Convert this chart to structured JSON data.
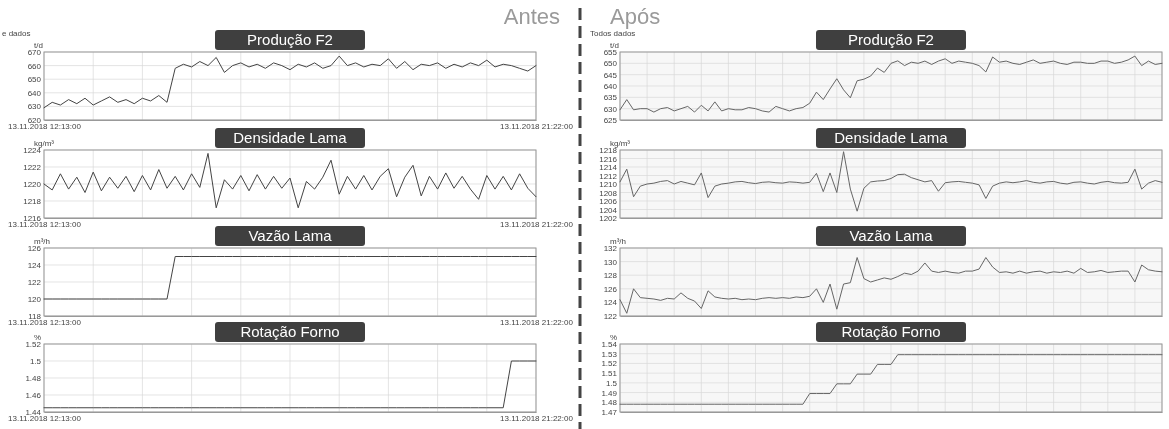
{
  "chart_data": [
    {
      "type": "line",
      "title": "Produção F2",
      "ylabel": "t/d",
      "annotations": [
        "Antes",
        "e dados"
      ],
      "grid": true,
      "ylim": [
        620,
        670
      ],
      "yticks": [
        620,
        630,
        640,
        650,
        660,
        670
      ],
      "categories": [
        "13.11.2018 12:13:00",
        null,
        null,
        null,
        null,
        null,
        null,
        null,
        null,
        null,
        null,
        null,
        null,
        null,
        null,
        null,
        null,
        null,
        null,
        null,
        null,
        null,
        null,
        null,
        null,
        null,
        null,
        null,
        null,
        null,
        null,
        null,
        null,
        null,
        null,
        null,
        null,
        null,
        null,
        null,
        null,
        null,
        null,
        null,
        null,
        null,
        null,
        null,
        null,
        null,
        null,
        null,
        null,
        null,
        null,
        null,
        null,
        null,
        null,
        null,
        "13.11.2018 21:22:00"
      ],
      "series": [
        {
          "color": "#444444",
          "values": [
            629,
            633,
            631,
            635,
            632,
            636,
            631,
            634,
            637,
            633,
            635,
            632,
            636,
            634,
            638,
            633,
            658,
            661,
            659,
            663,
            660,
            666,
            655,
            660,
            662,
            659,
            661,
            658,
            662,
            660,
            657,
            661,
            659,
            662,
            658,
            660,
            667,
            660,
            662,
            659,
            661,
            660,
            665,
            658,
            663,
            657,
            661,
            660,
            662,
            658,
            661,
            659,
            662,
            660,
            664,
            659,
            661,
            660,
            658,
            656,
            660
          ]
        }
      ]
    },
    {
      "type": "line",
      "title": "Densidade Lama",
      "ylabel": "kg/m³",
      "grid": true,
      "ylim": [
        1216,
        1224
      ],
      "yticks": [
        1216,
        1218,
        1220,
        1222,
        1224
      ],
      "categories": [
        "13.11.2018 12:13:00",
        null,
        null,
        null,
        null,
        null,
        null,
        null,
        null,
        null,
        null,
        null,
        null,
        null,
        null,
        null,
        null,
        null,
        null,
        null,
        null,
        null,
        null,
        null,
        null,
        null,
        null,
        null,
        null,
        null,
        null,
        null,
        null,
        null,
        null,
        null,
        null,
        null,
        null,
        null,
        null,
        null,
        null,
        null,
        null,
        null,
        null,
        null,
        null,
        null,
        null,
        null,
        null,
        null,
        null,
        null,
        null,
        null,
        null,
        null,
        "13.11.2018 21:22:00"
      ],
      "series": [
        {
          "color": "#444444",
          "values": [
            1220,
            1219.3,
            1221.2,
            1219.4,
            1220.8,
            1219,
            1221.4,
            1219.2,
            1220.8,
            1219.5,
            1220.9,
            1219.1,
            1221,
            1219.3,
            1221.7,
            1219.5,
            1220.9,
            1219.3,
            1221.2,
            1219.6,
            1223.6,
            1217.2,
            1220.5,
            1219.4,
            1221,
            1219.2,
            1221.1,
            1219.4,
            1220.9,
            1219.5,
            1220.7,
            1217.2,
            1220.3,
            1219.4,
            1220.8,
            1222.8,
            1218.8,
            1220.9,
            1219.4,
            1221,
            1219.3,
            1220.9,
            1221.8,
            1218.5,
            1220.8,
            1222.2,
            1218.6,
            1220.9,
            1219.4,
            1221.3,
            1219.5,
            1220.9,
            1219.4,
            1218.2,
            1221,
            1219.4,
            1220.9,
            1219.3,
            1221.2,
            1219.5,
            1218.5
          ]
        }
      ]
    },
    {
      "type": "line",
      "title": "Vazão Lama",
      "ylabel": "m³/h",
      "grid": true,
      "ylim": [
        118,
        126
      ],
      "yticks": [
        118,
        120,
        122,
        124,
        126
      ],
      "categories": [
        "13.11.2018 12:13:00",
        null,
        null,
        null,
        null,
        null,
        null,
        null,
        null,
        null,
        null,
        null,
        null,
        null,
        null,
        null,
        null,
        null,
        null,
        null,
        null,
        null,
        null,
        null,
        null,
        null,
        null,
        null,
        null,
        null,
        null,
        null,
        null,
        null,
        null,
        null,
        null,
        null,
        null,
        null,
        null,
        null,
        null,
        null,
        null,
        null,
        null,
        null,
        null,
        null,
        null,
        null,
        null,
        null,
        null,
        null,
        null,
        null,
        null,
        null,
        "13.11.2018 21:22:00"
      ],
      "series": [
        {
          "color": "#444444",
          "values": [
            120,
            120,
            120,
            120,
            120,
            120,
            120,
            120,
            120,
            120,
            120,
            120,
            120,
            120,
            120,
            120,
            125,
            125,
            125,
            125,
            125,
            125,
            125,
            125,
            125,
            125,
            125,
            125,
            125,
            125,
            125,
            125,
            125,
            125,
            125,
            125,
            125,
            125,
            125,
            125,
            125,
            125,
            125,
            125,
            125,
            125,
            125,
            125,
            125,
            125,
            125,
            125,
            125,
            125,
            125,
            125,
            125,
            125,
            125,
            125,
            125
          ]
        }
      ]
    },
    {
      "type": "line",
      "title": "Rotação Forno",
      "ylabel": "%",
      "grid": true,
      "ylim": [
        1.44,
        1.52
      ],
      "yticks": [
        1.44,
        1.46,
        1.48,
        1.5,
        1.52
      ],
      "categories": [
        "13.11.2018 12:13:00",
        null,
        null,
        null,
        null,
        null,
        null,
        null,
        null,
        null,
        null,
        null,
        null,
        null,
        null,
        null,
        null,
        null,
        null,
        null,
        null,
        null,
        null,
        null,
        null,
        null,
        null,
        null,
        null,
        null,
        null,
        null,
        null,
        null,
        null,
        null,
        null,
        null,
        null,
        null,
        null,
        null,
        null,
        null,
        null,
        null,
        null,
        null,
        null,
        null,
        null,
        null,
        null,
        null,
        null,
        null,
        null,
        null,
        null,
        null,
        "13.11.2018 21:22:00"
      ],
      "series": [
        {
          "color": "#444444",
          "values": [
            1.445,
            1.445,
            1.445,
            1.445,
            1.445,
            1.445,
            1.445,
            1.445,
            1.445,
            1.445,
            1.445,
            1.445,
            1.445,
            1.445,
            1.445,
            1.445,
            1.445,
            1.445,
            1.445,
            1.445,
            1.445,
            1.445,
            1.445,
            1.445,
            1.445,
            1.445,
            1.445,
            1.445,
            1.445,
            1.445,
            1.445,
            1.445,
            1.445,
            1.445,
            1.445,
            1.445,
            1.445,
            1.445,
            1.445,
            1.445,
            1.445,
            1.445,
            1.445,
            1.445,
            1.445,
            1.445,
            1.445,
            1.445,
            1.445,
            1.445,
            1.445,
            1.445,
            1.445,
            1.445,
            1.445,
            1.445,
            1.445,
            1.5,
            1.5,
            1.5,
            1.5
          ]
        }
      ]
    },
    {
      "type": "line",
      "title": "Produção F2",
      "ylabel": "t/d",
      "annotations": [
        "Após",
        "Todos dados"
      ],
      "grid": true,
      "ylim": [
        625,
        655
      ],
      "yticks": [
        625,
        630,
        635,
        640,
        645,
        650,
        655
      ],
      "categories": [
        null,
        null,
        null,
        null,
        null,
        null,
        null,
        null,
        null,
        null,
        null,
        null,
        null,
        null,
        null,
        null,
        null,
        null,
        null,
        null,
        null,
        null,
        null,
        null,
        null,
        null,
        null,
        null,
        null,
        null,
        null,
        null,
        null,
        null,
        null,
        null,
        null,
        null,
        null,
        null,
        null,
        null,
        null,
        null,
        null,
        null,
        null,
        null,
        null,
        null,
        null,
        null,
        null,
        null,
        null,
        null,
        null,
        null,
        null,
        null,
        null,
        null,
        null,
        null,
        null,
        null,
        null,
        null,
        null,
        null,
        null,
        null,
        null,
        null,
        null,
        null,
        null,
        null,
        null,
        null,
        null
      ],
      "series": [
        {
          "color": "#666666",
          "values": [
            629.5,
            634,
            629.5,
            630,
            630,
            628.5,
            630,
            630.5,
            629,
            630,
            631,
            628.5,
            631.5,
            629,
            633,
            629,
            630,
            629.5,
            629.5,
            630.5,
            630,
            629,
            628.5,
            631,
            630,
            629,
            630,
            630.5,
            632.4,
            637.3,
            634,
            638.7,
            643.2,
            638.3,
            634.8,
            642.3,
            643,
            644.4,
            647.9,
            646,
            650,
            651.1,
            649,
            650.5,
            650,
            651,
            649.5,
            651,
            652,
            650,
            651,
            650.5,
            650,
            649,
            646.2,
            652.8,
            650.5,
            651,
            650,
            649.5,
            650.5,
            651.5,
            650,
            650.5,
            651,
            650,
            649.5,
            650.5,
            650.5,
            650,
            650,
            651,
            651,
            650,
            650.5,
            651.5,
            653.2,
            649,
            651,
            649.5,
            650
          ]
        }
      ]
    },
    {
      "type": "line",
      "title": "Densidade Lama",
      "ylabel": "kg/m³",
      "grid": true,
      "ylim": [
        1202,
        1218
      ],
      "yticks": [
        1202,
        1204,
        1206,
        1208,
        1210,
        1212,
        1214,
        1216,
        1218
      ],
      "categories": [
        null,
        null,
        null,
        null,
        null,
        null,
        null,
        null,
        null,
        null,
        null,
        null,
        null,
        null,
        null,
        null,
        null,
        null,
        null,
        null,
        null,
        null,
        null,
        null,
        null,
        null,
        null,
        null,
        null,
        null,
        null,
        null,
        null,
        null,
        null,
        null,
        null,
        null,
        null,
        null,
        null,
        null,
        null,
        null,
        null,
        null,
        null,
        null,
        null,
        null,
        null,
        null,
        null,
        null,
        null,
        null,
        null,
        null,
        null,
        null,
        null,
        null,
        null,
        null,
        null,
        null,
        null,
        null,
        null,
        null,
        null,
        null,
        null,
        null,
        null,
        null,
        null,
        null,
        null,
        null,
        null
      ],
      "series": [
        {
          "color": "#666666",
          "values": [
            1210.5,
            1213.5,
            1207,
            1209.5,
            1210,
            1210.2,
            1210.6,
            1210.8,
            1210,
            1210.6,
            1210.2,
            1209.8,
            1212.6,
            1206.8,
            1209.5,
            1210,
            1210.2,
            1210.5,
            1210.6,
            1210.3,
            1210.1,
            1210.4,
            1210.5,
            1210.3,
            1210.2,
            1210.5,
            1210.4,
            1210.2,
            1210.4,
            1212.5,
            1208.2,
            1212.6,
            1208,
            1217.6,
            1208.8,
            1203.6,
            1209,
            1210.5,
            1210.7,
            1210.8,
            1211.3,
            1212.2,
            1212.3,
            1211.5,
            1211,
            1210.5,
            1210.8,
            1208.3,
            1210.3,
            1210.5,
            1210.6,
            1210.4,
            1210.2,
            1209.8,
            1206.6,
            1209.5,
            1210.2,
            1210.5,
            1210.3,
            1210.5,
            1210.8,
            1210.4,
            1210.2,
            1210.5,
            1210.6,
            1210.2,
            1210,
            1210.4,
            1210.5,
            1210.2,
            1210,
            1210.4,
            1210.6,
            1210.3,
            1210.2,
            1210.4,
            1213.5,
            1208.8,
            1210.2,
            1210.8,
            1210.4
          ]
        }
      ]
    },
    {
      "type": "line",
      "title": "Vazão Lama",
      "ylabel": "m³/h",
      "grid": true,
      "ylim": [
        122,
        132
      ],
      "yticks": [
        122,
        124,
        126,
        128,
        130,
        132
      ],
      "categories": [
        null,
        null,
        null,
        null,
        null,
        null,
        null,
        null,
        null,
        null,
        null,
        null,
        null,
        null,
        null,
        null,
        null,
        null,
        null,
        null,
        null,
        null,
        null,
        null,
        null,
        null,
        null,
        null,
        null,
        null,
        null,
        null,
        null,
        null,
        null,
        null,
        null,
        null,
        null,
        null,
        null,
        null,
        null,
        null,
        null,
        null,
        null,
        null,
        null,
        null,
        null,
        null,
        null,
        null,
        null,
        null,
        null,
        null,
        null,
        null,
        null,
        null,
        null,
        null,
        null,
        null,
        null,
        null,
        null,
        null,
        null,
        null,
        null,
        null,
        null,
        null,
        null,
        null,
        null,
        null,
        null
      ],
      "series": [
        {
          "color": "#666666",
          "values": [
            124.4,
            122.4,
            126,
            124.7,
            124.6,
            124.5,
            124.3,
            124.6,
            124.5,
            125.4,
            124.6,
            124.2,
            123.1,
            125.7,
            124.8,
            124.6,
            124.5,
            124.6,
            124.4,
            124.5,
            124.4,
            124.6,
            124.7,
            124.6,
            124.7,
            124.6,
            124.8,
            124.7,
            124.9,
            126,
            124,
            126.7,
            123,
            126.7,
            126.9,
            130.6,
            127.5,
            127,
            127.3,
            127.6,
            127.4,
            127.8,
            128.3,
            128.1,
            128.6,
            129.8,
            128.6,
            128.4,
            128.6,
            128.4,
            128.3,
            128.6,
            128.6,
            128.9,
            130.6,
            129.2,
            128.4,
            128.5,
            128.3,
            128.6,
            128.3,
            128.5,
            128.6,
            128.3,
            128.5,
            128.4,
            128.6,
            128.3,
            129,
            128.4,
            128.5,
            128.7,
            128.4,
            128.5,
            128.6,
            128.6,
            127,
            129.5,
            128.8,
            128.6,
            128.5
          ]
        }
      ]
    },
    {
      "type": "line",
      "title": "Rotação Forno",
      "ylabel": "%",
      "grid": true,
      "ylim": [
        1.47,
        1.54
      ],
      "yticks": [
        1.47,
        1.48,
        1.49,
        1.5,
        1.51,
        1.52,
        1.53,
        1.54
      ],
      "categories": [
        null,
        null,
        null,
        null,
        null,
        null,
        null,
        null,
        null,
        null,
        null,
        null,
        null,
        null,
        null,
        null,
        null,
        null,
        null,
        null,
        null,
        null,
        null,
        null,
        null,
        null,
        null,
        null,
        null,
        null,
        null,
        null,
        null,
        null,
        null,
        null,
        null,
        null,
        null,
        null,
        null,
        null,
        null,
        null,
        null,
        null,
        null,
        null,
        null,
        null,
        null,
        null,
        null,
        null,
        null,
        null,
        null,
        null,
        null,
        null,
        null,
        null,
        null,
        null,
        null,
        null,
        null,
        null,
        null,
        null,
        null,
        null,
        null,
        null,
        null,
        null,
        null,
        null,
        null,
        null,
        null
      ],
      "series": [
        {
          "color": "#666666",
          "values": [
            1.478,
            1.478,
            1.478,
            1.478,
            1.478,
            1.478,
            1.478,
            1.478,
            1.478,
            1.478,
            1.478,
            1.478,
            1.478,
            1.478,
            1.478,
            1.478,
            1.478,
            1.478,
            1.478,
            1.478,
            1.478,
            1.478,
            1.478,
            1.478,
            1.478,
            1.478,
            1.478,
            1.478,
            1.489,
            1.489,
            1.489,
            1.489,
            1.499,
            1.499,
            1.499,
            1.509,
            1.509,
            1.509,
            1.519,
            1.519,
            1.519,
            1.529,
            1.529,
            1.529,
            1.529,
            1.529,
            1.529,
            1.529,
            1.529,
            1.529,
            1.529,
            1.529,
            1.529,
            1.529,
            1.529,
            1.529,
            1.529,
            1.529,
            1.529,
            1.529,
            1.529,
            1.529,
            1.529,
            1.529,
            1.529,
            1.529,
            1.529,
            1.529,
            1.529,
            1.529,
            1.529,
            1.529,
            1.529,
            1.529,
            1.529,
            1.529,
            1.529,
            1.529,
            1.529,
            1.529,
            1.529
          ]
        }
      ]
    }
  ]
}
